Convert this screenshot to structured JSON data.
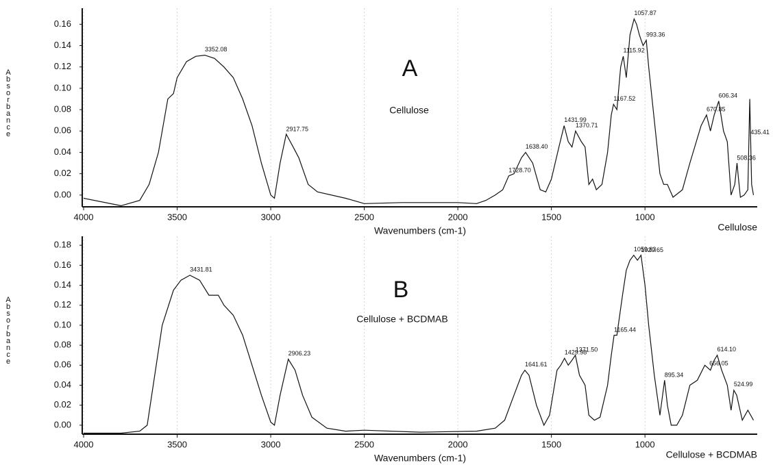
{
  "chart_data": [
    {
      "type": "line",
      "panel_label": "A",
      "sample_label": "Cellulose",
      "x_label": "Wavenumbers (cm-1)",
      "y_label": "Absorbance",
      "xlim": [
        4000,
        400
      ],
      "ylim": [
        -0.011,
        0.175
      ],
      "grid": true,
      "xticks": [
        4000,
        3500,
        3000,
        2500,
        2000,
        1500,
        1000
      ],
      "yticks": [
        {
          "value": 0,
          "label": "0.00"
        },
        {
          "value": 0.02,
          "label": "0.02"
        },
        {
          "value": 0.04,
          "label": "0.04"
        },
        {
          "value": 0.06,
          "label": "0.06"
        },
        {
          "value": 0.08,
          "label": "0.08"
        },
        {
          "value": 0.1,
          "label": "0.10"
        },
        {
          "value": 0.12,
          "label": "0.12"
        },
        {
          "value": 0.14,
          "label": "0.14"
        },
        {
          "value": 0.16,
          "label": "0.16"
        }
      ],
      "x": [
        4000,
        3800,
        3700,
        3650,
        3600,
        3550,
        3520,
        3500,
        3450,
        3400,
        3352,
        3300,
        3250,
        3200,
        3150,
        3100,
        3050,
        3000,
        2980,
        2950,
        2917,
        2880,
        2850,
        2800,
        2750,
        2600,
        2500,
        2300,
        2000,
        1900,
        1850,
        1800,
        1760,
        1728,
        1700,
        1660,
        1638,
        1600,
        1560,
        1530,
        1500,
        1460,
        1432,
        1410,
        1390,
        1371,
        1340,
        1320,
        1300,
        1280,
        1260,
        1230,
        1200,
        1180,
        1168,
        1150,
        1130,
        1116,
        1100,
        1080,
        1058,
        1045,
        1030,
        1010,
        993,
        980,
        950,
        920,
        900,
        880,
        850,
        800,
        760,
        700,
        671,
        650,
        630,
        606,
        580,
        560,
        540,
        520,
        508,
        500,
        490,
        470,
        450,
        440,
        430,
        420
      ],
      "series": [
        {
          "name": "Cellulose",
          "color": "#111111",
          "values": [
            -0.003,
            -0.01,
            -0.005,
            0.01,
            0.04,
            0.09,
            0.095,
            0.11,
            0.125,
            0.13,
            0.131,
            0.128,
            0.12,
            0.11,
            0.09,
            0.065,
            0.03,
            0.0,
            -0.003,
            0.03,
            0.057,
            0.045,
            0.035,
            0.01,
            0.003,
            -0.003,
            -0.008,
            -0.007,
            -0.007,
            -0.008,
            -0.005,
            0.0,
            0.005,
            0.018,
            0.02,
            0.035,
            0.04,
            0.03,
            0.005,
            0.003,
            0.015,
            0.045,
            0.065,
            0.05,
            0.045,
            0.06,
            0.05,
            0.045,
            0.01,
            0.015,
            0.005,
            0.01,
            0.04,
            0.075,
            0.085,
            0.08,
            0.12,
            0.13,
            0.11,
            0.15,
            0.165,
            0.16,
            0.15,
            0.14,
            0.145,
            0.12,
            0.07,
            0.02,
            0.01,
            0.01,
            -0.002,
            0.005,
            0.03,
            0.065,
            0.075,
            0.06,
            0.075,
            0.088,
            0.06,
            0.05,
            0.0,
            0.01,
            0.03,
            0.015,
            -0.002,
            0.0,
            0.005,
            0.09,
            0.01,
            0.0
          ]
        }
      ],
      "peaks": [
        {
          "x": 3352.08,
          "label": "3352.08"
        },
        {
          "x": 2917.75,
          "label": "2917.75"
        },
        {
          "x": 1728.7,
          "label": "1728.70"
        },
        {
          "x": 1638.4,
          "label": "1638.40"
        },
        {
          "x": 1431.99,
          "label": "1431.99"
        },
        {
          "x": 1370.71,
          "label": "1370.71"
        },
        {
          "x": 1167.52,
          "label": "1167.52"
        },
        {
          "x": 1115.92,
          "label": "1115.92"
        },
        {
          "x": 1057.87,
          "label": "1057.87"
        },
        {
          "x": 993.36,
          "label": "993.36"
        },
        {
          "x": 670.85,
          "label": "670.85"
        },
        {
          "x": 606.34,
          "label": "606.34"
        },
        {
          "x": 508.36,
          "label": "508.36"
        },
        {
          "x": 435.41,
          "label": "435.41"
        }
      ]
    },
    {
      "type": "line",
      "panel_label": "B",
      "sample_label": "Cellulose + BCDMAB",
      "x_label": "Wavenumbers (cm-1)",
      "y_label": "Absorbance",
      "xlim": [
        4000,
        400
      ],
      "ylim": [
        -0.009,
        0.189
      ],
      "grid": true,
      "xticks": [
        4000,
        3500,
        3000,
        2500,
        2000,
        1500,
        1000
      ],
      "yticks": [
        {
          "value": 0,
          "label": "0.00"
        },
        {
          "value": 0.02,
          "label": "0.02"
        },
        {
          "value": 0.04,
          "label": "0.04"
        },
        {
          "value": 0.06,
          "label": "0.06"
        },
        {
          "value": 0.08,
          "label": "0.08"
        },
        {
          "value": 0.1,
          "label": "0.10"
        },
        {
          "value": 0.12,
          "label": "0.12"
        },
        {
          "value": 0.14,
          "label": "0.14"
        },
        {
          "value": 0.16,
          "label": "0.16"
        },
        {
          "value": 0.18,
          "label": "0.18"
        }
      ],
      "x": [
        4000,
        3800,
        3700,
        3660,
        3620,
        3580,
        3520,
        3480,
        3432,
        3380,
        3330,
        3280,
        3250,
        3200,
        3150,
        3100,
        3050,
        3000,
        2980,
        2950,
        2906,
        2870,
        2830,
        2780,
        2700,
        2600,
        2500,
        2200,
        1900,
        1800,
        1750,
        1700,
        1660,
        1642,
        1620,
        1580,
        1540,
        1510,
        1470,
        1450,
        1430,
        1410,
        1390,
        1372,
        1350,
        1320,
        1300,
        1270,
        1240,
        1200,
        1180,
        1165,
        1150,
        1120,
        1100,
        1080,
        1060,
        1040,
        1021,
        1000,
        980,
        950,
        920,
        895,
        880,
        860,
        830,
        800,
        760,
        720,
        680,
        650,
        630,
        614,
        590,
        560,
        540,
        525,
        510,
        480,
        450,
        420
      ],
      "series": [
        {
          "name": "Cellulose + BCDMAB",
          "color": "#111111",
          "values": [
            -0.008,
            -0.008,
            -0.006,
            0.0,
            0.05,
            0.1,
            0.135,
            0.145,
            0.15,
            0.145,
            0.13,
            0.13,
            0.12,
            0.11,
            0.09,
            0.06,
            0.03,
            0.003,
            0.0,
            0.03,
            0.066,
            0.055,
            0.03,
            0.008,
            -0.003,
            -0.006,
            -0.005,
            -0.007,
            -0.006,
            -0.003,
            0.005,
            0.03,
            0.05,
            0.055,
            0.05,
            0.02,
            0.0,
            0.01,
            0.055,
            0.06,
            0.067,
            0.06,
            0.065,
            0.07,
            0.05,
            0.04,
            0.01,
            0.005,
            0.008,
            0.04,
            0.07,
            0.09,
            0.09,
            0.13,
            0.155,
            0.165,
            0.17,
            0.165,
            0.17,
            0.14,
            0.1,
            0.05,
            0.01,
            0.045,
            0.02,
            0.0,
            0.0,
            0.01,
            0.04,
            0.045,
            0.06,
            0.055,
            0.065,
            0.07,
            0.055,
            0.04,
            0.015,
            0.035,
            0.03,
            0.005,
            0.015,
            0.005
          ]
        }
      ],
      "peaks": [
        {
          "x": 3431.81,
          "label": "3431.81"
        },
        {
          "x": 2906.23,
          "label": "2906.23"
        },
        {
          "x": 1641.61,
          "label": "1641.61"
        },
        {
          "x": 1429.98,
          "label": "1429.98"
        },
        {
          "x": 1371.5,
          "label": "1371.50"
        },
        {
          "x": 1165.44,
          "label": "1165.44"
        },
        {
          "x": 1059.63,
          "label": "1059.63"
        },
        {
          "x": 1020.65,
          "label": "1020.65"
        },
        {
          "x": 895.34,
          "label": "895.34"
        },
        {
          "x": 656.05,
          "label": "656.05"
        },
        {
          "x": 614.1,
          "label": "614.10"
        },
        {
          "x": 524.99,
          "label": "524.99"
        }
      ]
    }
  ]
}
